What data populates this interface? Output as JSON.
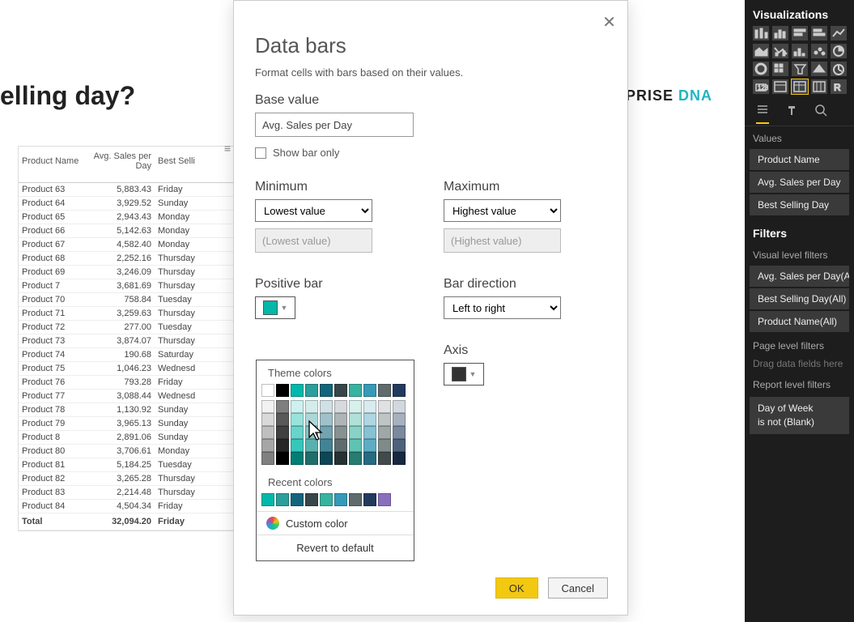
{
  "page": {
    "title_fragment": "elling day?",
    "brand_left": "NTERPRISE",
    "brand_right": "DNA"
  },
  "table": {
    "columns": [
      "Product Name",
      "Avg. Sales per Day",
      "Best Selli"
    ],
    "rows": [
      [
        "Product 63",
        "5,883.43",
        "Friday"
      ],
      [
        "Product 64",
        "3,929.52",
        "Sunday"
      ],
      [
        "Product 65",
        "2,943.43",
        "Monday"
      ],
      [
        "Product 66",
        "5,142.63",
        "Monday"
      ],
      [
        "Product 67",
        "4,582.40",
        "Monday"
      ],
      [
        "Product 68",
        "2,252.16",
        "Thursday"
      ],
      [
        "Product 69",
        "3,246.09",
        "Thursday"
      ],
      [
        "Product 7",
        "3,681.69",
        "Thursday"
      ],
      [
        "Product 70",
        "758.84",
        "Tuesday"
      ],
      [
        "Product 71",
        "3,259.63",
        "Thursday"
      ],
      [
        "Product 72",
        "277.00",
        "Tuesday"
      ],
      [
        "Product 73",
        "3,874.07",
        "Thursday"
      ],
      [
        "Product 74",
        "190.68",
        "Saturday"
      ],
      [
        "Product 75",
        "1,046.23",
        "Wednesd"
      ],
      [
        "Product 76",
        "793.28",
        "Friday"
      ],
      [
        "Product 77",
        "3,088.44",
        "Wednesd"
      ],
      [
        "Product 78",
        "1,130.92",
        "Sunday"
      ],
      [
        "Product 79",
        "3,965.13",
        "Sunday"
      ],
      [
        "Product 8",
        "2,891.06",
        "Sunday"
      ],
      [
        "Product 80",
        "3,706.61",
        "Monday"
      ],
      [
        "Product 81",
        "5,184.25",
        "Tuesday"
      ],
      [
        "Product 82",
        "3,265.28",
        "Thursday"
      ],
      [
        "Product 83",
        "2,214.48",
        "Thursday"
      ],
      [
        "Product 84",
        "4,504.34",
        "Friday"
      ]
    ],
    "total": [
      "Total",
      "32,094.20",
      "Friday"
    ]
  },
  "dialog": {
    "title": "Data bars",
    "description": "Format cells with bars based on their values.",
    "base_value_label": "Base value",
    "base_value": "Avg. Sales per Day",
    "show_bar_only": "Show bar only",
    "minimum_label": "Minimum",
    "maximum_label": "Maximum",
    "min_select": "Lowest value",
    "max_select": "Highest value",
    "min_placeholder": "(Lowest value)",
    "max_placeholder": "(Highest value)",
    "positive_bar_label": "Positive bar",
    "positive_color": "#01b8aa",
    "bar_direction_label": "Bar direction",
    "bar_direction": "Left to right",
    "axis_label": "Axis",
    "axis_color": "#323232",
    "ok": "OK",
    "cancel": "Cancel"
  },
  "picker": {
    "theme_label": "Theme colors",
    "recent_label": "Recent colors",
    "custom_label": "Custom color",
    "revert_label": "Revert to default",
    "row_top": [
      "#ffffff",
      "#000000",
      "#01b8aa",
      "#2c9e9b",
      "#13657b",
      "#374649",
      "#37b3a0",
      "#3599b8",
      "#5f6b6d",
      "#223a5e"
    ],
    "shade_cols": [
      [
        "#f2f2f2",
        "#d9d9d9",
        "#bfbfbf",
        "#a6a6a6",
        "#808080"
      ],
      [
        "#7f7f7f",
        "#595959",
        "#404040",
        "#262626",
        "#000000"
      ],
      [
        "#ccf1ee",
        "#99e3dd",
        "#67d5cc",
        "#34c7bb",
        "#017e76"
      ],
      [
        "#d5ecec",
        "#abd8d7",
        "#82c5c3",
        "#58b1af",
        "#1f6e6c"
      ],
      [
        "#d0e0e5",
        "#a1c1ca",
        "#71a3b0",
        "#428495",
        "#0d4656"
      ],
      [
        "#d7dadb",
        "#afb5b6",
        "#879192",
        "#5f6c6d",
        "#263133"
      ],
      [
        "#d7f0ec",
        "#afe1d9",
        "#87d2c6",
        "#5fc3b3",
        "#267d70"
      ],
      [
        "#d7ebf1",
        "#aed6e3",
        "#86c2d4",
        "#5dadc6",
        "#256b81"
      ],
      [
        "#dfe1e2",
        "#bfc4c5",
        "#9fa7a7",
        "#7f8b8a",
        "#424a4c"
      ],
      [
        "#d3d8df",
        "#a6b0be",
        "#7a899e",
        "#4d617d",
        "#182841"
      ]
    ],
    "recent": [
      "#01b8aa",
      "#2c9e9b",
      "#13657b",
      "#374649",
      "#37b3a0",
      "#3599b8",
      "#5f6b6d",
      "#223a5e",
      "#8a6fbf"
    ]
  },
  "viz": {
    "title": "Visualizations",
    "tabs": {
      "values": "Values"
    },
    "fields": [
      "Product Name",
      "Avg. Sales per Day",
      "Best Selling Day"
    ],
    "filters_title": "Filters",
    "visual_filters_label": "Visual level filters",
    "visual_filters": [
      "Avg. Sales per Day(A",
      "Best Selling Day(All)",
      "Product Name(All)"
    ],
    "page_filters_label": "Page level filters",
    "page_filters_hint": "Drag data fields here",
    "report_filters_label": "Report level filters",
    "report_filter": {
      "line1": "Day of Week",
      "line2": "is not (Blank)"
    }
  }
}
